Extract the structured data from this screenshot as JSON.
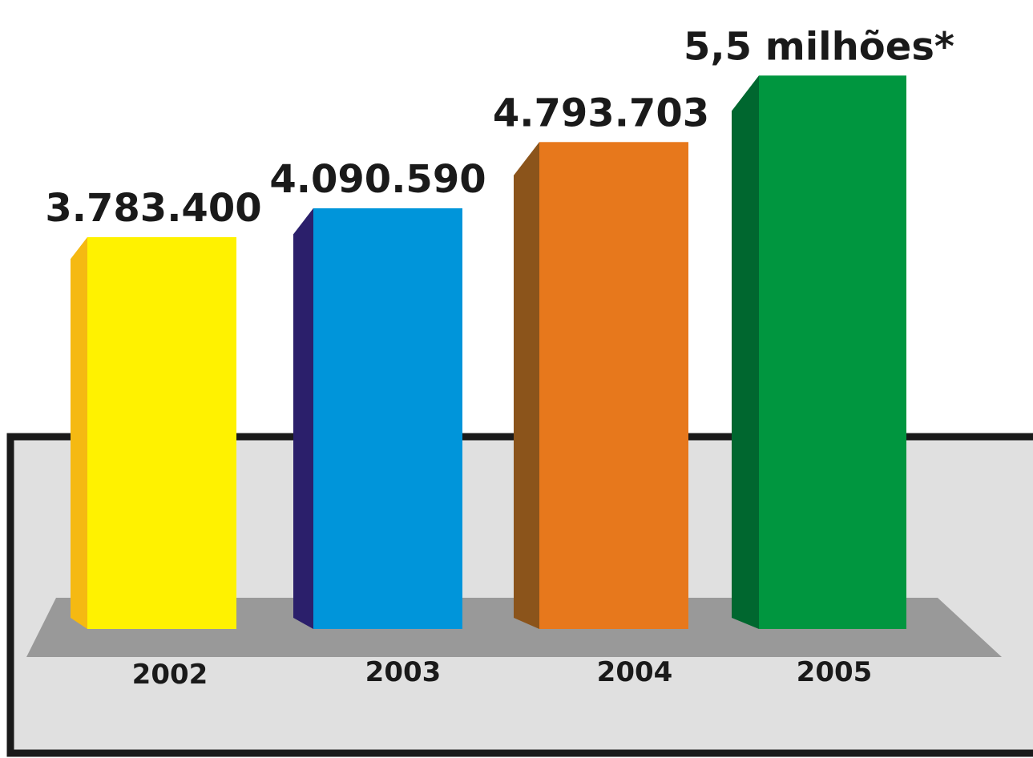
{
  "chart_data": {
    "type": "bar",
    "categories": [
      "2002",
      "2003",
      "2004",
      "2005"
    ],
    "values": [
      3783400,
      4090590,
      4793703,
      5500000
    ],
    "value_labels": [
      "3.783.400",
      "4.090.590",
      "4.793.703",
      "5,5 milhões*"
    ],
    "colors": {
      "front": [
        "#FFF200",
        "#0095DA",
        "#E7781C",
        "#00963F"
      ],
      "side": [
        "#F5B912",
        "#2B1F6B",
        "#8B541B",
        "#00672F"
      ]
    },
    "panel_color": "#E0E0E0",
    "floor_color": "#999999",
    "frame_color": "#1A1A1A",
    "grid": false,
    "legend": "none"
  }
}
